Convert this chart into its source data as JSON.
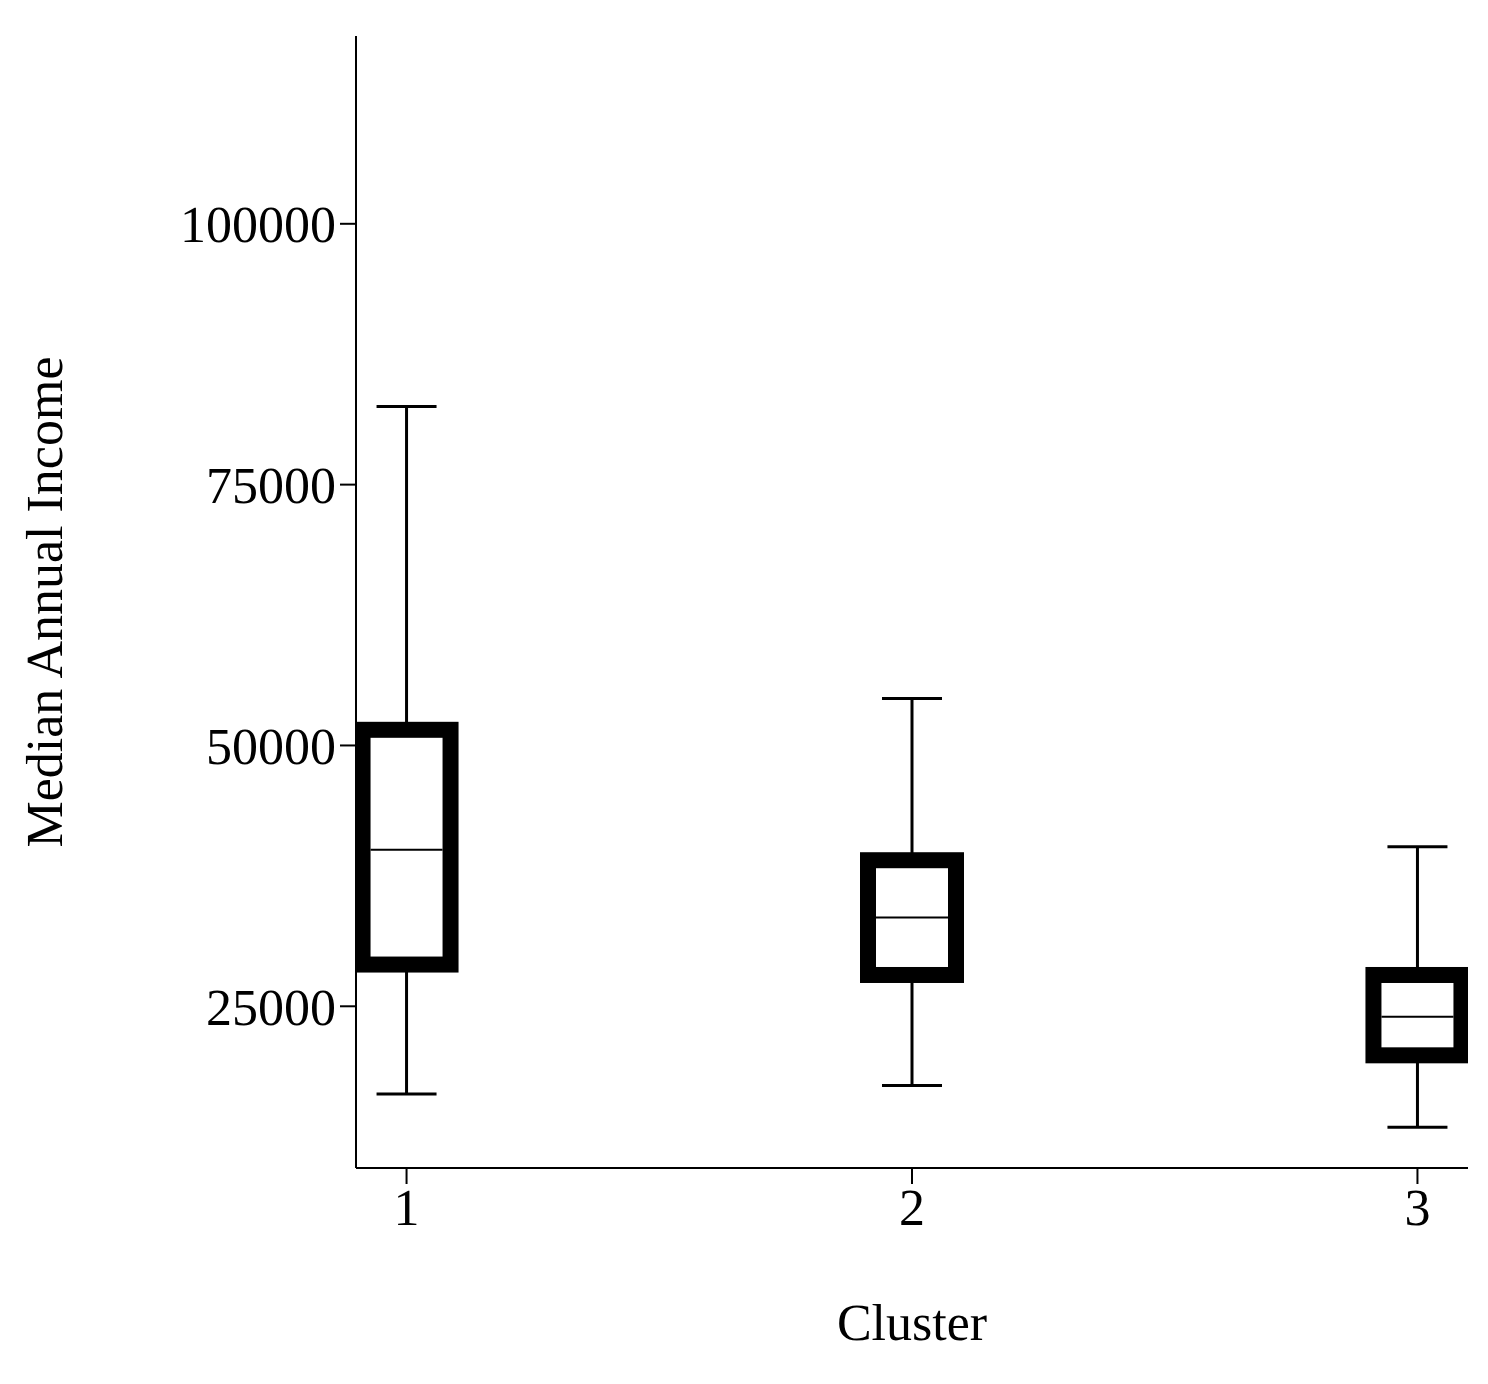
{
  "chart_data": {
    "type": "box",
    "xlabel": "Cluster",
    "ylabel": "Median Annual Income",
    "categories": [
      "1",
      "2",
      "3"
    ],
    "color": "#000000",
    "boxes": [
      {
        "low": 16600,
        "q1": 29000,
        "median": 40000,
        "q3": 51500,
        "high": 82500
      },
      {
        "low": 17400,
        "q1": 28000,
        "median": 33500,
        "q3": 39000,
        "high": 54500
      },
      {
        "low": 13400,
        "q1": 20300,
        "median": 24000,
        "q3": 28000,
        "high": 40300
      }
    ],
    "ylim": [
      9500,
      118000
    ],
    "yticks": [
      25000,
      50000,
      75000,
      100000
    ],
    "grid": false,
    "legend": false
  }
}
